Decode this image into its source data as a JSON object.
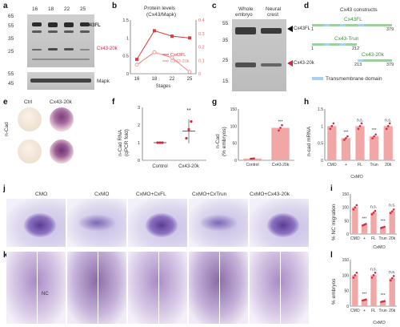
{
  "panels": {
    "a": {
      "label": "a",
      "stages": [
        "16",
        "18",
        "22",
        "25"
      ],
      "markers": [
        "65",
        "55",
        "35",
        "25",
        "55",
        "45"
      ],
      "cx43fl": "Cx43FL",
      "cx43_20k": "Cx43-20k",
      "mapk": "Mapk"
    },
    "b": {
      "label": "b",
      "title_line1": "Protein levels",
      "title_line2": "(Cx43/Mapk)",
      "xlabel": "Stages"
    },
    "c": {
      "label": "c",
      "col1_line1": "Whole",
      "col1_line2": "embryo",
      "col2_line1": "Neural",
      "col2_line2": "crest",
      "markers": [
        "55",
        "35",
        "25",
        "15"
      ],
      "arrow_top": "Cx43FL",
      "arrow_bottom": "Cx43-20k"
    },
    "d": {
      "label": "d",
      "title": "Cx43 constructs",
      "fl": "Cx43FL",
      "trun": "Cx43-Trun",
      "k20": "Cx43-20k",
      "n1": "1",
      "n379a": "379",
      "n1b": "1",
      "n212": "212",
      "n213": "213",
      "n379b": "379",
      "legend": "Transmembrane domain"
    },
    "e": {
      "label": "e",
      "ctrl": "Ctrl",
      "k20": "Cx43-20k",
      "side": "n-Cad"
    },
    "f": {
      "label": "f",
      "ylabel_line1": "n-Cad RNA",
      "ylabel_line2": "(qPCR fold)",
      "categories": [
        "Control",
        "Cx43-20k"
      ],
      "sig": "**"
    },
    "g": {
      "label": "g",
      "ylabel_line1": "n-Cad",
      "ylabel_line2": "(% embryos)",
      "categories": [
        "Control",
        "Cx43-20k"
      ],
      "sig": "***"
    },
    "h": {
      "label": "h",
      "ylabel": "n-cad mRNA",
      "categories": [
        "CMO",
        "+",
        "FL",
        "Trun",
        "20k"
      ],
      "group": "CxMO",
      "sigs": [
        "***",
        "n.s.",
        "***",
        "n.s."
      ]
    },
    "i": {
      "label": "i",
      "ylabel": "% NC migration",
      "categories": [
        "CMO",
        "+",
        "FL",
        "Trun",
        "20k"
      ],
      "group": "CxMO",
      "sigs": [
        "***",
        "n.s.",
        "***",
        "n.s."
      ]
    },
    "j": {
      "label": "j",
      "headers": [
        "CMO",
        "CxMO",
        "CxMO+CxFL",
        "CxMO+CxTrun",
        "CxMO+Cx43-20k"
      ]
    },
    "k": {
      "label": "k",
      "nc": "NC"
    },
    "l": {
      "label": "l",
      "ylabel": "% embryos",
      "categories": [
        "CMO",
        "+",
        "FL",
        "Trun",
        "20k"
      ],
      "group": "CxMO",
      "sigs": [
        "***",
        "n.s.",
        "***",
        "n.s."
      ]
    }
  },
  "chart_data": [
    {
      "type": "line",
      "title": "Protein levels (Cx43/Mapk)",
      "xlabel": "Stages",
      "categories": [
        "16",
        "18",
        "22",
        "25"
      ],
      "series": [
        {
          "name": "Cx43FL",
          "values": [
            0.4,
            1.2,
            1.05,
            1.0
          ],
          "color": "#e0393e"
        },
        {
          "name": "Cx43-20k",
          "values": [
            0.25,
            0.6,
            0.45,
            0.05
          ],
          "color": "#f08080"
        }
      ],
      "ylim": [
        0,
        1.5
      ],
      "y2lim": [
        0,
        0.4
      ]
    },
    {
      "type": "scatter",
      "ylabel": "n-Cad RNA (qPCR fold)",
      "categories": [
        "Control",
        "Cx43-20k"
      ],
      "values": [
        1.0,
        1.65
      ],
      "ylim": [
        0,
        3
      ]
    },
    {
      "type": "bar",
      "ylabel": "n-Cad (% embryos)",
      "categories": [
        "Control",
        "Cx43-20k"
      ],
      "values": [
        5,
        95
      ],
      "ylim": [
        0,
        150
      ]
    },
    {
      "type": "bar",
      "ylabel": "n-cad mRNA",
      "categories": [
        "CMO",
        "+",
        "FL",
        "Trun",
        "20k"
      ],
      "values": [
        1.0,
        0.65,
        1.0,
        0.7,
        1.0
      ],
      "ylim": [
        0,
        1.5
      ]
    },
    {
      "type": "bar",
      "ylabel": "% NC migration",
      "categories": [
        "CMO",
        "+",
        "FL",
        "Trun",
        "20k"
      ],
      "values": [
        100,
        35,
        80,
        25,
        85
      ],
      "ylim": [
        0,
        150
      ]
    },
    {
      "type": "bar",
      "ylabel": "% embryos",
      "categories": [
        "CMO",
        "+",
        "FL",
        "Trun",
        "20k"
      ],
      "values": [
        100,
        20,
        100,
        15,
        90
      ],
      "ylim": [
        0,
        150
      ]
    }
  ],
  "colors": {
    "bar": "#f2a7a7",
    "point": "#d7263d",
    "line": "#e0393e",
    "embryo_purple": "#6a3c8c"
  }
}
